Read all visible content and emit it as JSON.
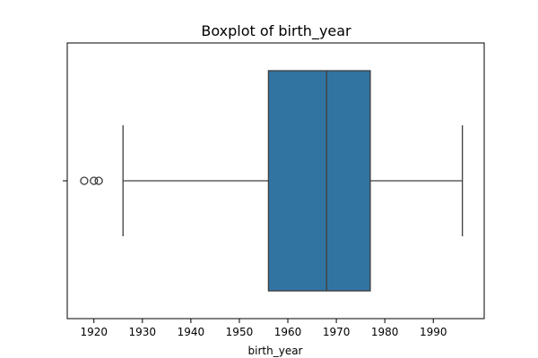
{
  "chart_data": {
    "type": "boxplot",
    "title": "Boxplot of birth_year",
    "xlabel": "birth_year",
    "ylabel": "",
    "xlim": [
      1914.5,
      2000.5
    ],
    "xticks": [
      1920,
      1930,
      1940,
      1950,
      1960,
      1970,
      1980,
      1990
    ],
    "xtick_labels": [
      "1920",
      "1930",
      "1940",
      "1950",
      "1960",
      "1970",
      "1980",
      "1990"
    ],
    "grid": false,
    "orientation": "horizontal",
    "box": {
      "whisker_low": 1926,
      "q1": 1956,
      "median": 1968,
      "q3": 1977,
      "whisker_high": 1996
    },
    "outliers": [
      1918,
      1920,
      1921
    ],
    "colors": {
      "box_fill": "#3274a1",
      "line": "#3d3d3d",
      "axes": "#000000"
    }
  }
}
